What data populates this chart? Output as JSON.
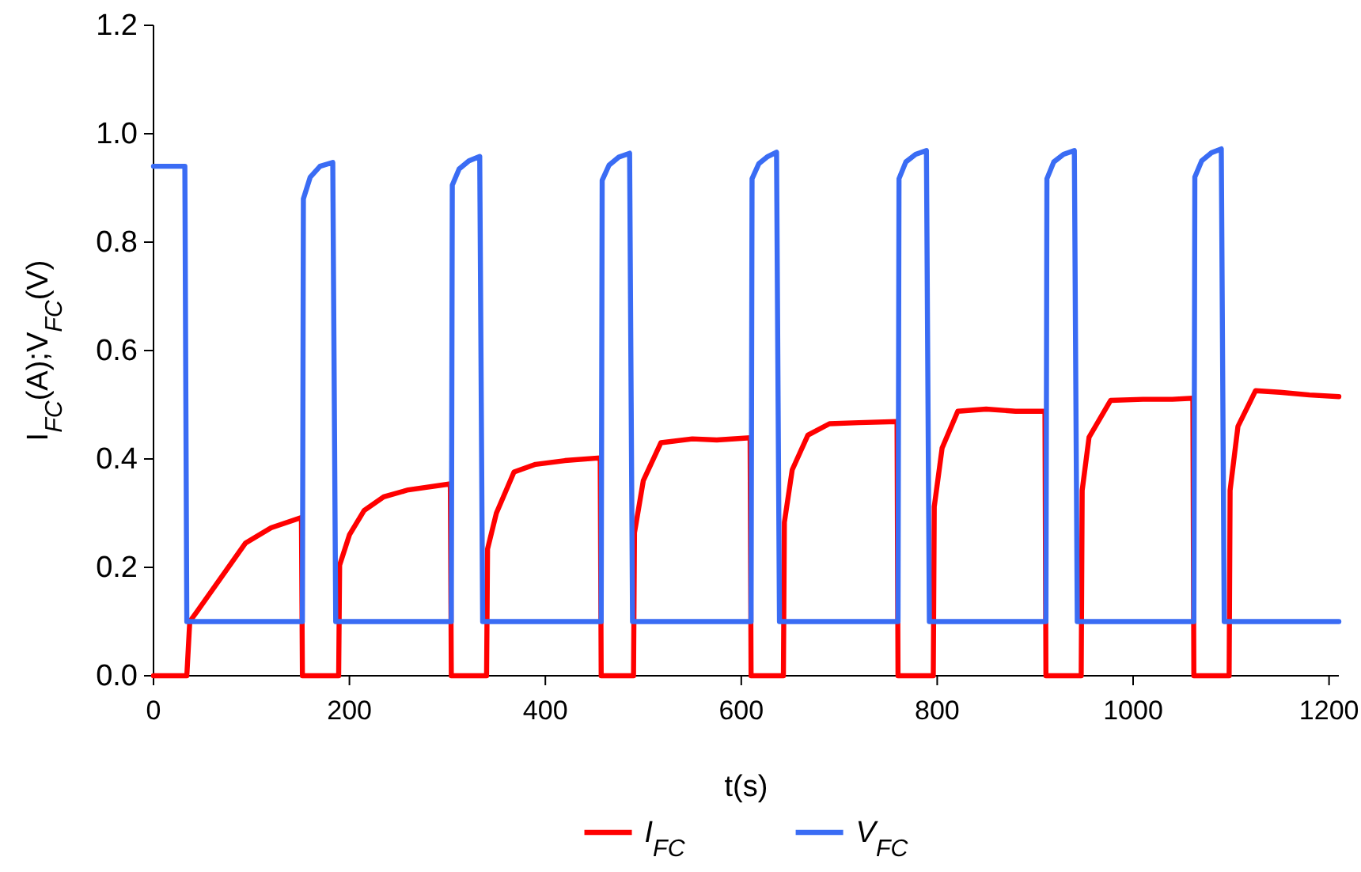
{
  "chart_data": {
    "type": "line",
    "xlabel": "t(s)",
    "ylabel": "I$_{FC}$(A);V$_{FC}$(V)",
    "xlim": [
      0,
      1210
    ],
    "xticks": [
      0,
      200,
      400,
      600,
      800,
      1000,
      1200
    ],
    "ylim": [
      0,
      1.2
    ],
    "yticks": [
      {
        "value": 0,
        "label": "0.0"
      },
      {
        "value": 0.2,
        "label": "0.2"
      },
      {
        "value": 0.4,
        "label": "0.4"
      },
      {
        "value": 0.6,
        "label": "0.6"
      },
      {
        "value": 0.8,
        "label": "0.8"
      },
      {
        "value": 1,
        "label": "1.0"
      },
      {
        "value": 1.2,
        "label": "1.2"
      }
    ],
    "grid": false,
    "legend": "bottom",
    "line_style": "solid",
    "marker": "none",
    "series": [
      {
        "name": "I$_{FC}$",
        "color": "#ff0000",
        "x": [
          0,
          34,
          37,
          45,
          67,
          94,
          120,
          151,
          152,
          189,
          190,
          200,
          215,
          235,
          260,
          303,
          304,
          340,
          341,
          350,
          368,
          390,
          420,
          456,
          457,
          490,
          491,
          500,
          518,
          550,
          575,
          609,
          610,
          643,
          644,
          652,
          668,
          690,
          720,
          759,
          760,
          796,
          797,
          805,
          821,
          850,
          880,
          910,
          911,
          947,
          948,
          955,
          977,
          1010,
          1040,
          1061,
          1062,
          1098,
          1099,
          1107,
          1125,
          1150,
          1180,
          1210
        ],
        "values": [
          0,
          0,
          0.1,
          0.12,
          0.176,
          0.245,
          0.273,
          0.292,
          0,
          0,
          0.204,
          0.26,
          0.305,
          0.33,
          0.343,
          0.354,
          0,
          0,
          0.234,
          0.3,
          0.376,
          0.39,
          0.397,
          0.402,
          0,
          0,
          0.264,
          0.36,
          0.43,
          0.437,
          0.435,
          0.439,
          0,
          0,
          0.283,
          0.38,
          0.444,
          0.465,
          0.467,
          0.469,
          0,
          0,
          0.312,
          0.42,
          0.488,
          0.492,
          0.488,
          0.488,
          0,
          0,
          0.342,
          0.44,
          0.508,
          0.51,
          0.51,
          0.512,
          0,
          0,
          0.342,
          0.46,
          0.526,
          0.523,
          0.518,
          0.515
        ]
      },
      {
        "name": "V$_{FC}$",
        "color": "#3a6cf4",
        "x": [
          0,
          32,
          34,
          152,
          153,
          160,
          170,
          183,
          186,
          304,
          305,
          312,
          322,
          333,
          336,
          457,
          458,
          465,
          475,
          486,
          489,
          610,
          611,
          618,
          627,
          636,
          639,
          760,
          761,
          768,
          778,
          789,
          792,
          911,
          912,
          919,
          929,
          940,
          943,
          1062,
          1063,
          1070,
          1080,
          1090,
          1093,
          1210
        ],
        "values": [
          0.94,
          0.94,
          0.1,
          0.1,
          0.88,
          0.92,
          0.94,
          0.947,
          0.1,
          0.1,
          0.905,
          0.935,
          0.95,
          0.958,
          0.1,
          0.1,
          0.914,
          0.942,
          0.957,
          0.964,
          0.1,
          0.1,
          0.917,
          0.945,
          0.958,
          0.966,
          0.1,
          0.1,
          0.917,
          0.948,
          0.962,
          0.969,
          0.1,
          0.1,
          0.917,
          0.948,
          0.962,
          0.969,
          0.1,
          0.1,
          0.92,
          0.95,
          0.965,
          0.972,
          0.1,
          0.1
        ]
      }
    ]
  }
}
